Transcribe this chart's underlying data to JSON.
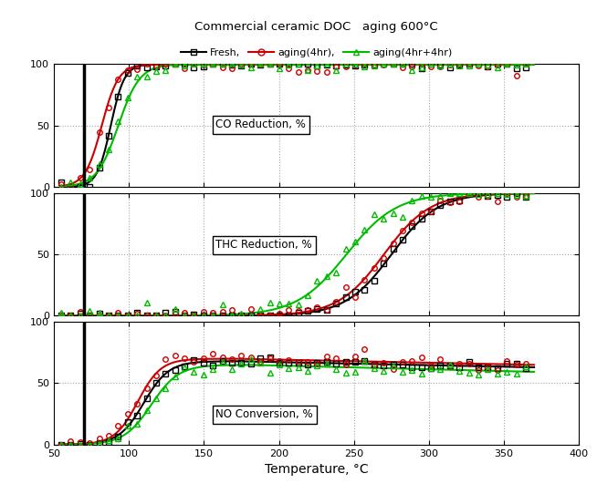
{
  "title": "Commercial ceramic DOC   aging 600°C",
  "xlabel": "Temperature, °C",
  "xlim": [
    50,
    400
  ],
  "xticks": [
    50,
    100,
    150,
    200,
    250,
    300,
    350,
    400
  ],
  "ylim": [
    0,
    100
  ],
  "yticks": [
    0,
    50,
    100
  ],
  "legend_labels": [
    "Fresh,",
    "aging(4hr),",
    "aging(4hr+4hr)"
  ],
  "colors": {
    "fresh": "#000000",
    "aging4": "#cc0000",
    "aging4p4": "#00bb00"
  },
  "panel_labels": [
    "CO Reduction, %",
    "THC Reduction, %",
    "NO Conversion, %"
  ],
  "background": "#ffffff",
  "co": {
    "fresh_x0": 88,
    "fresh_k": 0.22,
    "aging4_x0": 82,
    "aging4_k": 0.18,
    "aging4p4_x0": 93,
    "aging4p4_k": 0.14
  },
  "thc": {
    "fresh_x0": 275,
    "fresh_k": 0.065,
    "aging4_x0": 270,
    "aging4_k": 0.065,
    "aging4p4_x0": 245,
    "aging4p4_k": 0.06
  },
  "no": {
    "fresh_x0": 110,
    "fresh_k": 0.12,
    "fresh_peak": 68,
    "fresh_slope": -0.025,
    "aging4_x0": 106,
    "aging4_k": 0.13,
    "aging4_peak": 70,
    "aging4_slope": -0.025,
    "aging4p4_x0": 115,
    "aging4p4_k": 0.11,
    "aging4p4_peak": 65,
    "aging4p4_slope": -0.03
  }
}
